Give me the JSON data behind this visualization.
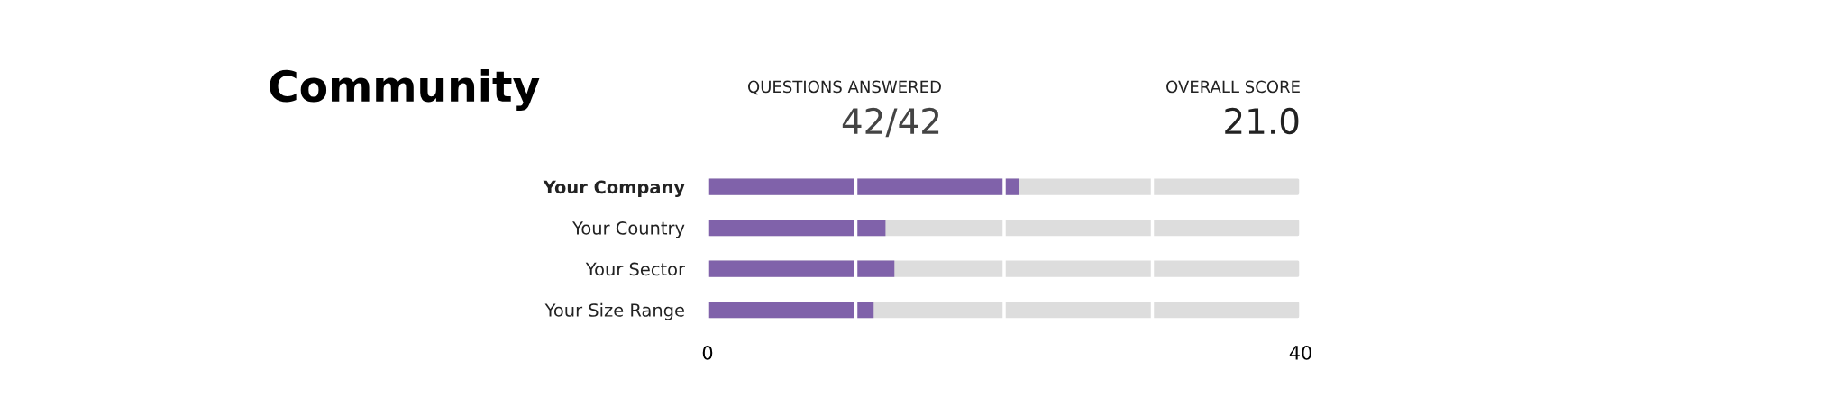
{
  "chart_data": {
    "type": "bar",
    "orientation": "horizontal",
    "title": "Community",
    "annotations": [
      "QUESTIONS ANSWERED",
      "42/42",
      "OVERALL SCORE",
      "21.0"
    ],
    "categories": [
      "Your Company",
      "Your Country",
      "Your Sector",
      "Your Size Range"
    ],
    "values": [
      21.0,
      12.0,
      12.6,
      11.2
    ],
    "color": "#8062aa",
    "xlim": [
      0,
      40
    ],
    "xticks": [
      0,
      {
        "value": 10,
        "label": null
      },
      {
        "value": 20,
        "label": null
      },
      {
        "value": 30,
        "label": null
      },
      40
    ],
    "grid": "x"
  }
}
